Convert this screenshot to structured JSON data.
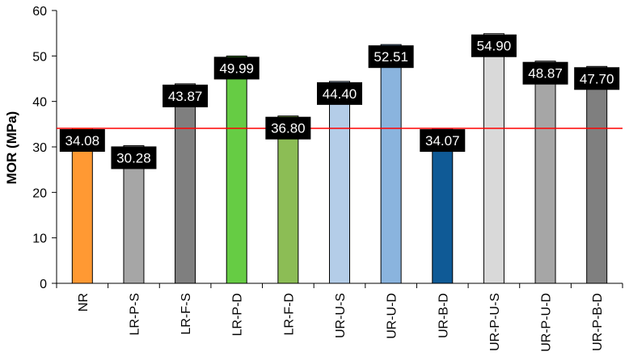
{
  "chart_data": {
    "type": "bar",
    "title": "",
    "xlabel": "",
    "ylabel": "MOR (MPa)",
    "ylim": [
      0,
      60
    ],
    "yticks": [
      0,
      10,
      20,
      30,
      40,
      50,
      60
    ],
    "grid": false,
    "legend": "none",
    "categories": [
      "NR",
      "LR-P-S",
      "LR-F-S",
      "LR-P-D",
      "LR-F-D",
      "UR-U-S",
      "UR-U-D",
      "UR-B-D",
      "UR-P-U-S",
      "UR-P-U-D",
      "UR-P-B-D"
    ],
    "values": [
      34.08,
      30.28,
      43.87,
      49.99,
      36.8,
      44.4,
      52.51,
      34.07,
      54.9,
      48.87,
      47.7
    ],
    "data_labels": [
      "34.08",
      "30.28",
      "43.87",
      "49.99",
      "36.80",
      "44.40",
      "52.51",
      "34.07",
      "54.90",
      "48.87",
      "47.70"
    ],
    "bar_colors": [
      "#FF9933",
      "#A6A6A6",
      "#7F7F7F",
      "#66CC44",
      "#8CBD55",
      "#B4CDE8",
      "#8AB4DE",
      "#0F5A96",
      "#D9D9D9",
      "#A6A6A6",
      "#7F7F7F"
    ],
    "reference_line": {
      "value": 34.08,
      "color": "#FF0000"
    },
    "data_label_style": {
      "background": "#000000",
      "text_color": "#FFFFFF"
    }
  }
}
